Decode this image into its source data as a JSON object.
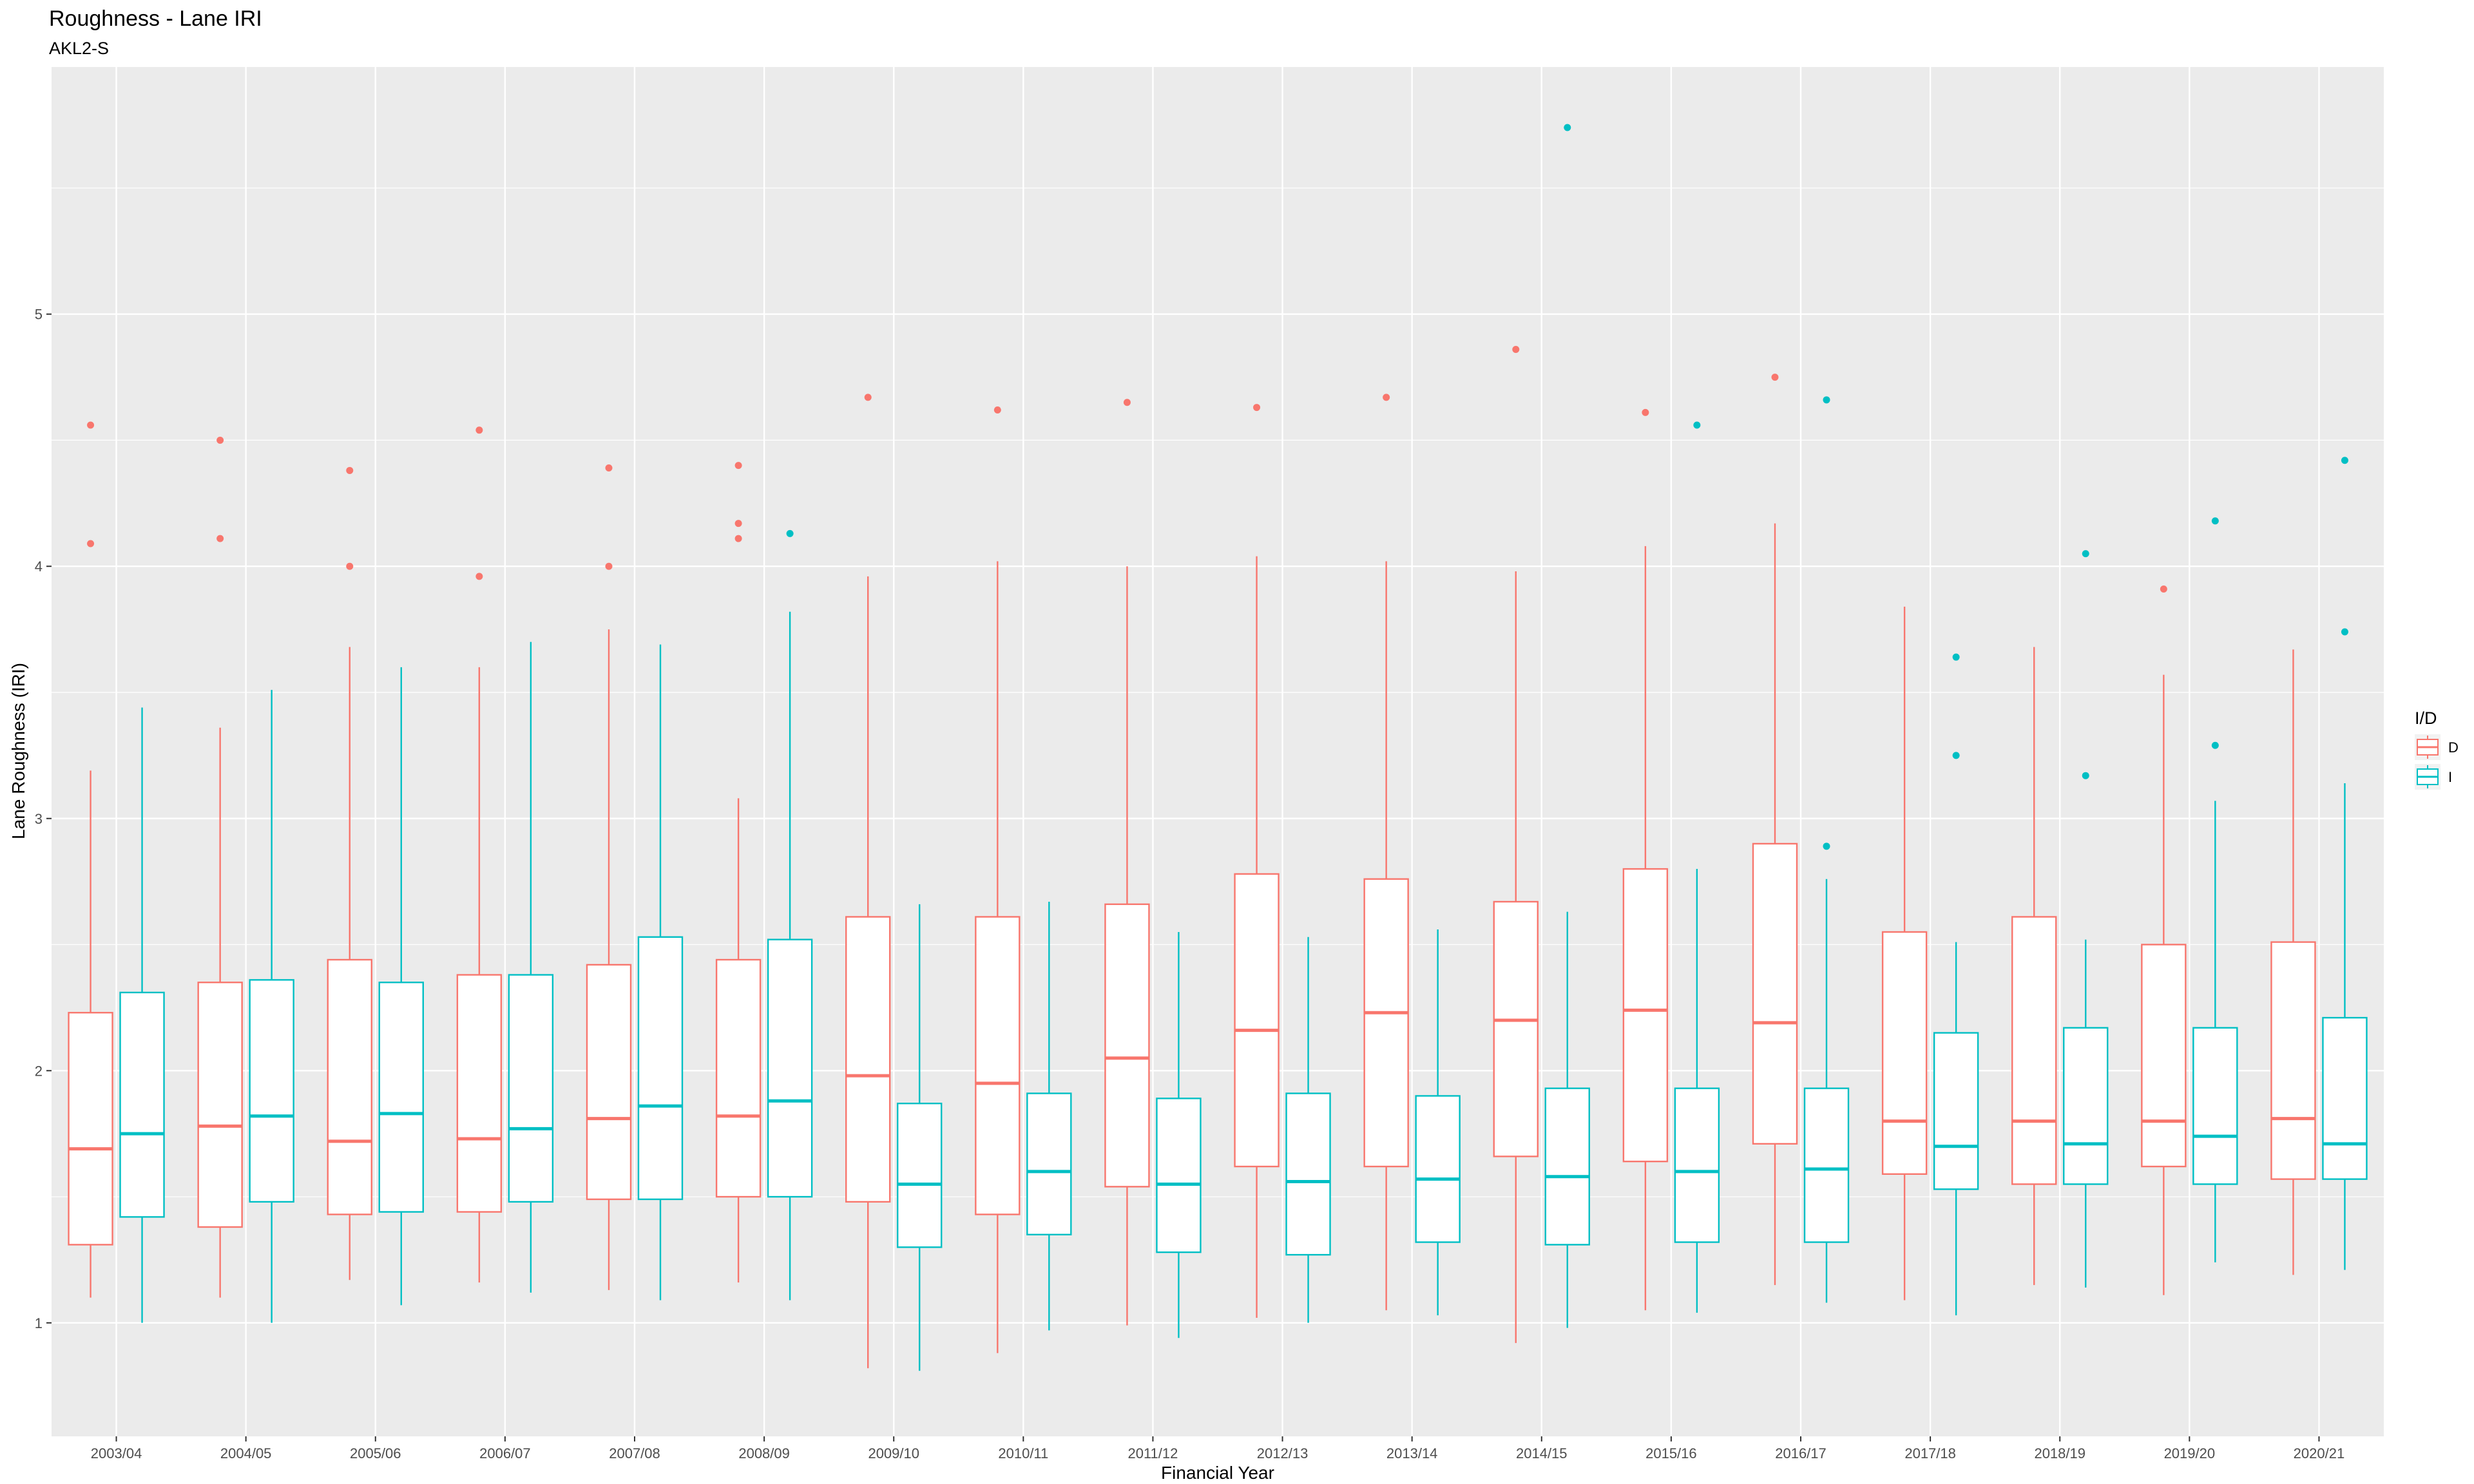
{
  "chart_data": {
    "type": "boxplot",
    "title": "Roughness - Lane IRI",
    "subtitle": "AKL2-S",
    "xlabel": "Financial Year",
    "ylabel": "Lane Roughness (IRI)",
    "ylim": [
      0.55,
      5.98
    ],
    "yticks": [
      1,
      2,
      3,
      4,
      5
    ],
    "grid": true,
    "legend": {
      "title": "I/D",
      "position": "right",
      "entries": [
        {
          "label": "D",
          "color": "#F8766D"
        },
        {
          "label": "I",
          "color": "#00BFC4"
        }
      ]
    },
    "categories": [
      "2003/04",
      "2004/05",
      "2005/06",
      "2006/07",
      "2007/08",
      "2008/09",
      "2009/10",
      "2010/11",
      "2011/12",
      "2012/13",
      "2013/14",
      "2014/15",
      "2015/16",
      "2016/17",
      "2017/18",
      "2018/19",
      "2019/20",
      "2020/21"
    ],
    "series": [
      {
        "name": "D",
        "color": "#F8766D",
        "boxes": [
          {
            "whisker_low": 1.1,
            "q1": 1.31,
            "median": 1.69,
            "q3": 2.23,
            "whisker_high": 3.19,
            "outliers": [
              4.09,
              4.56
            ]
          },
          {
            "whisker_low": 1.1,
            "q1": 1.38,
            "median": 1.78,
            "q3": 2.35,
            "whisker_high": 3.36,
            "outliers": [
              4.11,
              4.5
            ]
          },
          {
            "whisker_low": 1.17,
            "q1": 1.43,
            "median": 1.72,
            "q3": 2.44,
            "whisker_high": 3.68,
            "outliers": [
              4.0,
              4.38
            ]
          },
          {
            "whisker_low": 1.16,
            "q1": 1.44,
            "median": 1.73,
            "q3": 2.38,
            "whisker_high": 3.6,
            "outliers": [
              3.96,
              4.54
            ]
          },
          {
            "whisker_low": 1.13,
            "q1": 1.49,
            "median": 1.81,
            "q3": 2.42,
            "whisker_high": 3.75,
            "outliers": [
              4.0,
              4.39
            ]
          },
          {
            "whisker_low": 1.16,
            "q1": 1.5,
            "median": 1.82,
            "q3": 2.44,
            "whisker_high": 3.08,
            "outliers": [
              4.11,
              4.17,
              4.4
            ]
          },
          {
            "whisker_low": 0.82,
            "q1": 1.48,
            "median": 1.98,
            "q3": 2.61,
            "whisker_high": 3.96,
            "outliers": [
              4.67
            ]
          },
          {
            "whisker_low": 0.88,
            "q1": 1.43,
            "median": 1.95,
            "q3": 2.61,
            "whisker_high": 4.02,
            "outliers": [
              4.62
            ]
          },
          {
            "whisker_low": 0.99,
            "q1": 1.54,
            "median": 2.05,
            "q3": 2.66,
            "whisker_high": 4.0,
            "outliers": [
              4.65
            ]
          },
          {
            "whisker_low": 1.02,
            "q1": 1.62,
            "median": 2.16,
            "q3": 2.78,
            "whisker_high": 4.04,
            "outliers": [
              4.63
            ]
          },
          {
            "whisker_low": 1.05,
            "q1": 1.62,
            "median": 2.23,
            "q3": 2.76,
            "whisker_high": 4.02,
            "outliers": [
              4.67
            ]
          },
          {
            "whisker_low": 0.92,
            "q1": 1.66,
            "median": 2.2,
            "q3": 2.67,
            "whisker_high": 3.98,
            "outliers": [
              4.86
            ]
          },
          {
            "whisker_low": 1.05,
            "q1": 1.64,
            "median": 2.24,
            "q3": 2.8,
            "whisker_high": 4.08,
            "outliers": [
              4.61
            ]
          },
          {
            "whisker_low": 1.15,
            "q1": 1.71,
            "median": 2.19,
            "q3": 2.9,
            "whisker_high": 4.17,
            "outliers": [
              4.75
            ]
          },
          {
            "whisker_low": 1.09,
            "q1": 1.59,
            "median": 1.8,
            "q3": 2.55,
            "whisker_high": 3.84,
            "outliers": []
          },
          {
            "whisker_low": 1.15,
            "q1": 1.55,
            "median": 1.8,
            "q3": 2.61,
            "whisker_high": 3.68,
            "outliers": []
          },
          {
            "whisker_low": 1.11,
            "q1": 1.62,
            "median": 1.8,
            "q3": 2.5,
            "whisker_high": 3.57,
            "outliers": [
              3.91
            ]
          },
          {
            "whisker_low": 1.19,
            "q1": 1.57,
            "median": 1.81,
            "q3": 2.51,
            "whisker_high": 3.67,
            "outliers": []
          }
        ]
      },
      {
        "name": "I",
        "color": "#00BFC4",
        "boxes": [
          {
            "whisker_low": 1.0,
            "q1": 1.42,
            "median": 1.75,
            "q3": 2.31,
            "whisker_high": 3.44,
            "outliers": []
          },
          {
            "whisker_low": 1.0,
            "q1": 1.48,
            "median": 1.82,
            "q3": 2.36,
            "whisker_high": 3.51,
            "outliers": []
          },
          {
            "whisker_low": 1.07,
            "q1": 1.44,
            "median": 1.83,
            "q3": 2.35,
            "whisker_high": 3.6,
            "outliers": []
          },
          {
            "whisker_low": 1.12,
            "q1": 1.48,
            "median": 1.77,
            "q3": 2.38,
            "whisker_high": 3.7,
            "outliers": []
          },
          {
            "whisker_low": 1.09,
            "q1": 1.49,
            "median": 1.86,
            "q3": 2.53,
            "whisker_high": 3.69,
            "outliers": []
          },
          {
            "whisker_low": 1.09,
            "q1": 1.5,
            "median": 1.88,
            "q3": 2.52,
            "whisker_high": 3.82,
            "outliers": [
              4.13
            ]
          },
          {
            "whisker_low": 0.81,
            "q1": 1.3,
            "median": 1.55,
            "q3": 1.87,
            "whisker_high": 2.66,
            "outliers": []
          },
          {
            "whisker_low": 0.97,
            "q1": 1.35,
            "median": 1.6,
            "q3": 1.91,
            "whisker_high": 2.67,
            "outliers": []
          },
          {
            "whisker_low": 0.94,
            "q1": 1.28,
            "median": 1.55,
            "q3": 1.89,
            "whisker_high": 2.55,
            "outliers": []
          },
          {
            "whisker_low": 1.0,
            "q1": 1.27,
            "median": 1.56,
            "q3": 1.91,
            "whisker_high": 2.53,
            "outliers": []
          },
          {
            "whisker_low": 1.03,
            "q1": 1.32,
            "median": 1.57,
            "q3": 1.9,
            "whisker_high": 2.56,
            "outliers": []
          },
          {
            "whisker_low": 0.98,
            "q1": 1.31,
            "median": 1.58,
            "q3": 1.93,
            "whisker_high": 2.63,
            "outliers": [
              5.74
            ]
          },
          {
            "whisker_low": 1.04,
            "q1": 1.32,
            "median": 1.6,
            "q3": 1.93,
            "whisker_high": 2.8,
            "outliers": [
              4.56
            ]
          },
          {
            "whisker_low": 1.08,
            "q1": 1.32,
            "median": 1.61,
            "q3": 1.93,
            "whisker_high": 2.76,
            "outliers": [
              2.89,
              4.66
            ]
          },
          {
            "whisker_low": 1.03,
            "q1": 1.53,
            "median": 1.7,
            "q3": 2.15,
            "whisker_high": 2.51,
            "outliers": [
              3.25,
              3.64
            ]
          },
          {
            "whisker_low": 1.14,
            "q1": 1.55,
            "median": 1.71,
            "q3": 2.17,
            "whisker_high": 2.52,
            "outliers": [
              3.17,
              4.05
            ]
          },
          {
            "whisker_low": 1.24,
            "q1": 1.55,
            "median": 1.74,
            "q3": 2.17,
            "whisker_high": 3.07,
            "outliers": [
              3.29,
              4.18
            ]
          },
          {
            "whisker_low": 1.21,
            "q1": 1.57,
            "median": 1.71,
            "q3": 2.21,
            "whisker_high": 3.14,
            "outliers": [
              3.74,
              4.42
            ]
          }
        ]
      }
    ]
  }
}
